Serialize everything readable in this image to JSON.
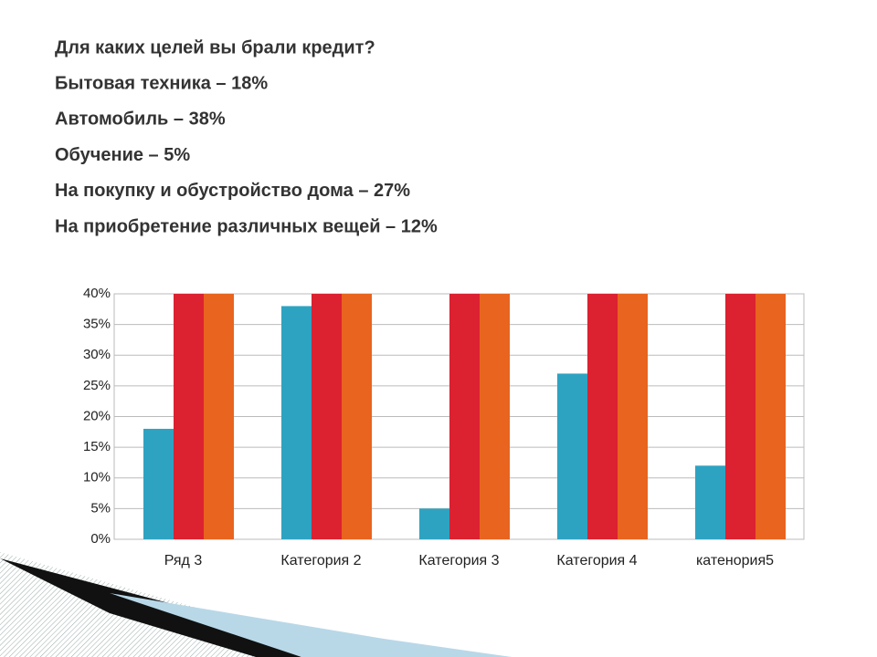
{
  "slide": {
    "lines": [
      "Для каких целей вы брали кредит?",
      "Бытовая техника – 18%",
      "Автомобиль – 38%",
      "Обучение – 5%",
      "На покупку и обустройство дома – 27%",
      "На приобретение различных вещей – 12%"
    ]
  },
  "chart_data": {
    "type": "bar",
    "categories": [
      "Ряд 3",
      "Категория 2",
      "Категория 3",
      "Категория 4",
      "катенория5"
    ],
    "series": [
      {
        "color": "#2ea3c1",
        "values": [
          18,
          38,
          5,
          27,
          12
        ]
      },
      {
        "color": "#dc2130",
        "values": [
          40,
          40,
          40,
          40,
          40
        ]
      },
      {
        "color": "#e8641f",
        "values": [
          40,
          40,
          40,
          40,
          40
        ]
      }
    ],
    "ylim": [
      0,
      40
    ],
    "yticks": [
      {
        "value": 0,
        "label": "0%"
      },
      {
        "value": 5,
        "label": "5%"
      },
      {
        "value": 10,
        "label": "10%"
      },
      {
        "value": 15,
        "label": "15%"
      },
      {
        "value": 20,
        "label": "20%"
      },
      {
        "value": 25,
        "label": "25%"
      },
      {
        "value": 30,
        "label": "30%"
      },
      {
        "value": 35,
        "label": "35%"
      },
      {
        "value": 40,
        "label": "40%"
      }
    ],
    "grid": true
  }
}
